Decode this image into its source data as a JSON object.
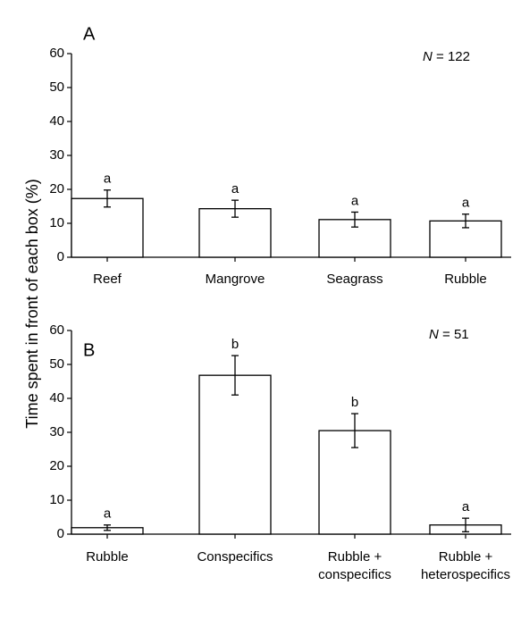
{
  "ylabel": "Time spent in front of each box (%)",
  "colors": {
    "bar_fill": "#ffffff",
    "stroke": "#000000"
  },
  "chart_data": [
    {
      "type": "bar",
      "panel": "A",
      "n_label_prefix": "N",
      "n_label_value": "= 122",
      "categories": [
        "Reef",
        "Mangrove",
        "Seagrass",
        "Rubble"
      ],
      "values": [
        17.3,
        14.3,
        11.1,
        10.7
      ],
      "errors": [
        2.5,
        2.5,
        2.2,
        2.0
      ],
      "significance": [
        "a",
        "a",
        "a",
        "a"
      ],
      "ylim": [
        0,
        60
      ],
      "yticks": [
        "0",
        "10",
        "20",
        "30",
        "40",
        "50",
        "60"
      ]
    },
    {
      "type": "bar",
      "panel": "B",
      "n_label_prefix": "N",
      "n_label_value": "= 51",
      "categories": [
        {
          "line1": "Rubble",
          "line2": ""
        },
        {
          "line1": "Conspecifics",
          "line2": ""
        },
        {
          "line1": "Rubble +",
          "line2": "conspecifics"
        },
        {
          "line1": "Rubble +",
          "line2": "heterospecifics"
        }
      ],
      "values": [
        1.9,
        46.8,
        30.5,
        2.7
      ],
      "errors": [
        0.8,
        5.8,
        5.0,
        2.0
      ],
      "significance": [
        "a",
        "b",
        "b",
        "a"
      ],
      "ylim": [
        0,
        60
      ],
      "yticks": [
        "0",
        "10",
        "20",
        "30",
        "40",
        "50",
        "60"
      ]
    }
  ]
}
